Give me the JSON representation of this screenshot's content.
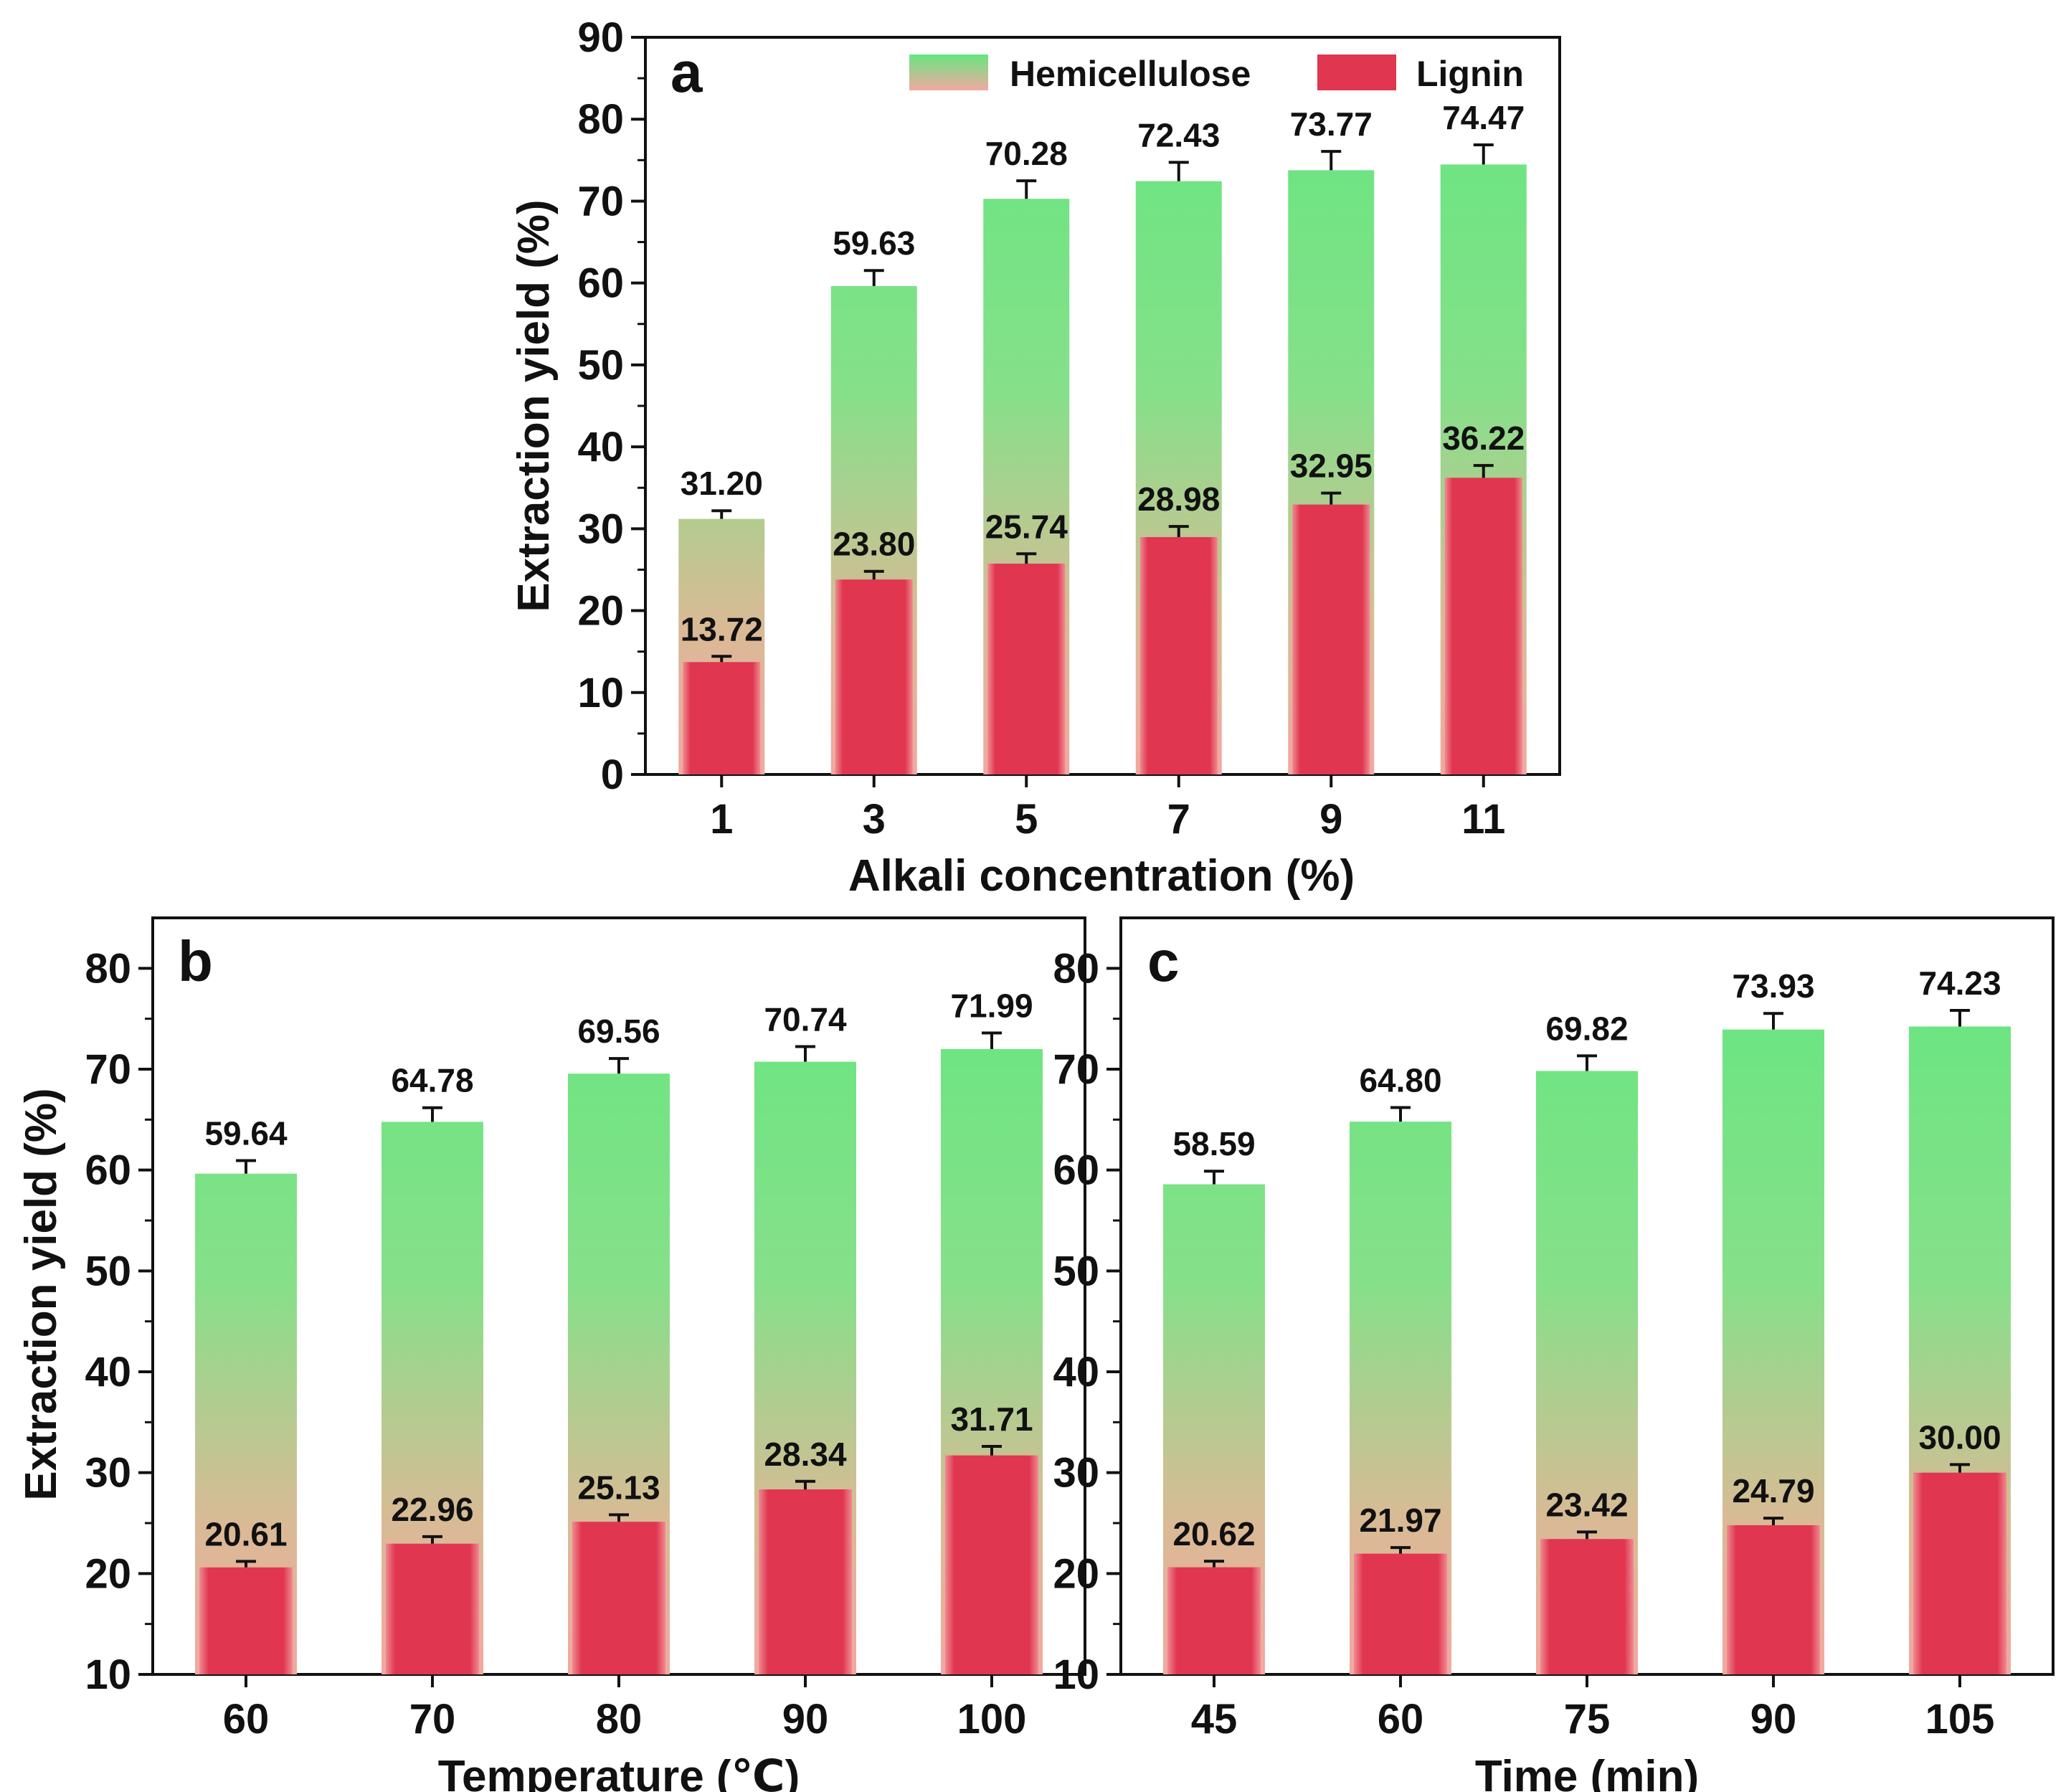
{
  "figure_description_free": true,
  "legend": {
    "hemicellulose": "Hemicellulose",
    "lignin": "Lignin"
  },
  "colors": {
    "hemi_top": "#66e67f",
    "hemi_bottom": "#f2a8a0",
    "lignin_fill": "#e0364f",
    "lignin_edge": "#f08a92",
    "axis": "#111111"
  },
  "chart_data": [
    {
      "id": "a",
      "type": "bar",
      "panel_letter": "a",
      "xlabel": "Alkali concentration (%)",
      "ylabel": "Extraction yield (%)",
      "ylim": [
        0,
        90
      ],
      "yticks": [
        0,
        10,
        20,
        30,
        40,
        50,
        60,
        70,
        80,
        90
      ],
      "categories": [
        "1",
        "3",
        "5",
        "7",
        "9",
        "11"
      ],
      "series": [
        {
          "name": "Hemicellulose",
          "values": [
            31.2,
            59.63,
            70.28,
            72.43,
            73.77,
            74.47
          ],
          "labels": [
            "31.20",
            "59.63",
            "70.28",
            "72.43",
            "73.77",
            "74.47"
          ],
          "errors": [
            1.0,
            1.9,
            2.2,
            2.3,
            2.3,
            2.4
          ]
        },
        {
          "name": "Lignin",
          "values": [
            13.72,
            23.8,
            25.74,
            28.98,
            32.95,
            36.22
          ],
          "labels": [
            "13.72",
            "23.80",
            "25.74",
            "28.98",
            "32.95",
            "36.22"
          ],
          "errors": [
            0.7,
            1.0,
            1.2,
            1.3,
            1.4,
            1.5
          ]
        }
      ]
    },
    {
      "id": "b",
      "type": "bar",
      "panel_letter": "b",
      "xlabel": "Temperature (℃)",
      "ylabel": "Extraction yield (%)",
      "ylim": [
        10,
        85
      ],
      "yticks": [
        10,
        20,
        30,
        40,
        50,
        60,
        70,
        80
      ],
      "categories": [
        "60",
        "70",
        "80",
        "90",
        "100"
      ],
      "series": [
        {
          "name": "Hemicellulose",
          "values": [
            59.64,
            64.78,
            69.56,
            70.74,
            71.99
          ],
          "labels": [
            "59.64",
            "64.78",
            "69.56",
            "70.74",
            "71.99"
          ],
          "errors": [
            1.3,
            1.4,
            1.5,
            1.5,
            1.6
          ]
        },
        {
          "name": "Lignin",
          "values": [
            20.61,
            22.96,
            25.13,
            28.34,
            31.71
          ],
          "labels": [
            "20.61",
            "22.96",
            "25.13",
            "28.34",
            "31.71"
          ],
          "errors": [
            0.6,
            0.7,
            0.7,
            0.8,
            0.9
          ]
        }
      ]
    },
    {
      "id": "c",
      "type": "bar",
      "panel_letter": "c",
      "xlabel": "Time (min)",
      "ylabel": "",
      "ylim": [
        10,
        85
      ],
      "yticks": [
        10,
        20,
        30,
        40,
        50,
        60,
        70,
        80
      ],
      "categories": [
        "45",
        "60",
        "75",
        "90",
        "105"
      ],
      "series": [
        {
          "name": "Hemicellulose",
          "values": [
            58.59,
            64.8,
            69.82,
            73.93,
            74.23
          ],
          "labels": [
            "58.59",
            "64.80",
            "69.82",
            "73.93",
            "74.23"
          ],
          "errors": [
            1.3,
            1.4,
            1.5,
            1.6,
            1.6
          ]
        },
        {
          "name": "Lignin",
          "values": [
            20.62,
            21.97,
            23.42,
            24.79,
            30.0
          ],
          "labels": [
            "20.62",
            "21.97",
            "23.42",
            "24.79",
            "30.00"
          ],
          "errors": [
            0.6,
            0.6,
            0.7,
            0.7,
            0.8
          ]
        }
      ]
    }
  ]
}
